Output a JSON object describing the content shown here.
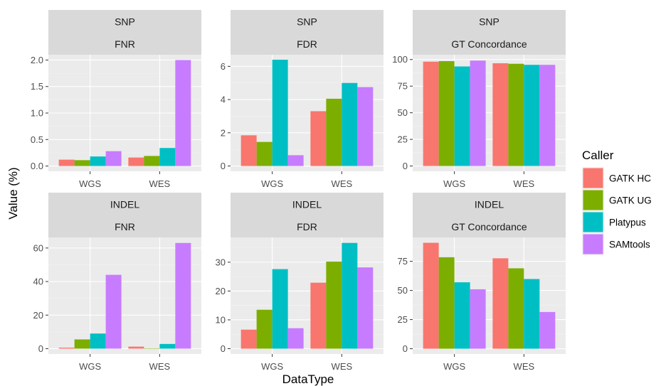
{
  "chart_data": {
    "type": "bar",
    "xlabel": "DataType",
    "ylabel": "Value (%)",
    "categories": [
      "WGS",
      "WES"
    ],
    "legend": {
      "title": "Caller",
      "placement": "right",
      "entries": [
        {
          "name": "GATK HC",
          "color": "#F8766D"
        },
        {
          "name": "GATK UG",
          "color": "#7CAE00"
        },
        {
          "name": "Platypus",
          "color": "#00BFC4"
        },
        {
          "name": "SAMtools",
          "color": "#C77CFF"
        }
      ]
    },
    "grid": true,
    "facets": [
      {
        "row": "SNP",
        "col": "FNR",
        "ylim": [
          -0.1,
          2.1
        ],
        "yticks": [
          0,
          0.5,
          1,
          1.5,
          2
        ],
        "yticklabels": [
          "0.0",
          "0.5",
          "1.0",
          "1.5",
          "2.0"
        ],
        "series": [
          {
            "name": "GATK HC",
            "values": [
              0.12,
              0.16
            ]
          },
          {
            "name": "GATK UG",
            "values": [
              0.11,
              0.19
            ]
          },
          {
            "name": "Platypus",
            "values": [
              0.18,
              0.34
            ]
          },
          {
            "name": "SAMtools",
            "values": [
              0.28,
              2.0
            ]
          }
        ]
      },
      {
        "row": "SNP",
        "col": "FDR",
        "ylim": [
          -0.32,
          6.7
        ],
        "yticks": [
          0,
          2,
          4,
          6
        ],
        "yticklabels": [
          "0",
          "2",
          "4",
          "6"
        ],
        "series": [
          {
            "name": "GATK HC",
            "values": [
              1.85,
              3.3
            ]
          },
          {
            "name": "GATK UG",
            "values": [
              1.45,
              4.05
            ]
          },
          {
            "name": "Platypus",
            "values": [
              6.4,
              5.0
            ]
          },
          {
            "name": "SAMtools",
            "values": [
              0.65,
              4.75
            ]
          }
        ]
      },
      {
        "row": "SNP",
        "col": "GT Concordance",
        "ylim": [
          -5,
          104.5
        ],
        "yticks": [
          0,
          25,
          50,
          75,
          100
        ],
        "yticklabels": [
          "0",
          "25",
          "50",
          "75",
          "100"
        ],
        "series": [
          {
            "name": "GATK HC",
            "values": [
              98.0,
              96.5
            ]
          },
          {
            "name": "GATK UG",
            "values": [
              98.5,
              96.0
            ]
          },
          {
            "name": "Platypus",
            "values": [
              93.5,
              95.0
            ]
          },
          {
            "name": "SAMtools",
            "values": [
              99.0,
              95.0
            ]
          }
        ]
      },
      {
        "row": "INDEL",
        "col": "FNR",
        "ylim": [
          -3.2,
          66.3
        ],
        "yticks": [
          0,
          20,
          40,
          60
        ],
        "yticklabels": [
          "0",
          "20",
          "40",
          "60"
        ],
        "series": [
          {
            "name": "GATK HC",
            "values": [
              0.6,
              1.2
            ]
          },
          {
            "name": "GATK UG",
            "values": [
              5.5,
              0.2
            ]
          },
          {
            "name": "Platypus",
            "values": [
              9.0,
              2.8
            ]
          },
          {
            "name": "SAMtools",
            "values": [
              44.0,
              63.0
            ]
          }
        ]
      },
      {
        "row": "INDEL",
        "col": "FDR",
        "ylim": [
          -1.85,
          38.6
        ],
        "yticks": [
          0,
          10,
          20,
          30
        ],
        "yticklabels": [
          "0",
          "10",
          "20",
          "30"
        ],
        "series": [
          {
            "name": "GATK HC",
            "values": [
              6.6,
              22.9
            ]
          },
          {
            "name": "GATK UG",
            "values": [
              13.5,
              30.2
            ]
          },
          {
            "name": "Platypus",
            "values": [
              27.6,
              36.7
            ]
          },
          {
            "name": "SAMtools",
            "values": [
              7.1,
              28.2
            ]
          }
        ]
      },
      {
        "row": "INDEL",
        "col": "GT Concordance",
        "ylim": [
          -4.55,
          95.5
        ],
        "yticks": [
          0,
          25,
          50,
          75
        ],
        "yticklabels": [
          "0",
          "25",
          "50",
          "75"
        ],
        "series": [
          {
            "name": "GATK HC",
            "values": [
              90.9,
              77.6
            ]
          },
          {
            "name": "GATK UG",
            "values": [
              78.5,
              69.0
            ]
          },
          {
            "name": "Platypus",
            "values": [
              57.0,
              59.8
            ]
          },
          {
            "name": "SAMtools",
            "values": [
              51.0,
              31.5
            ]
          }
        ]
      }
    ]
  }
}
